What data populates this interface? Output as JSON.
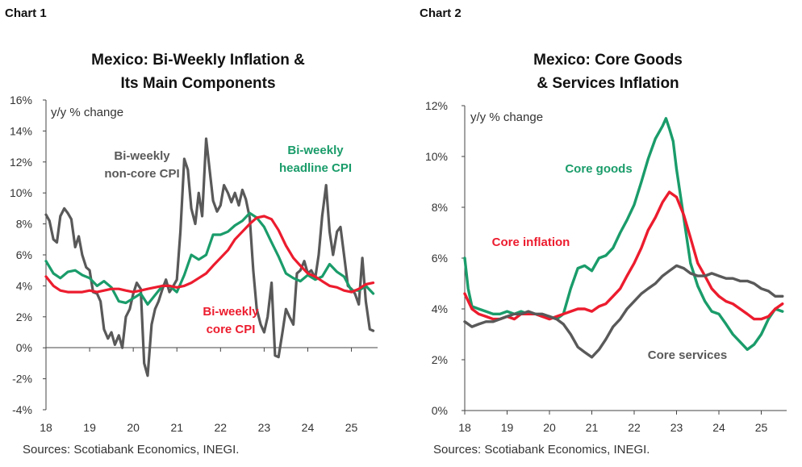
{
  "chart_data": [
    {
      "type": "line",
      "label": "Chart 1",
      "title_lines": [
        "Mexico: Bi-Weekly Inflation &",
        "Its Main Components"
      ],
      "unit_label": "y/y % change",
      "source": "Sources: Scotiabank Economics, INEGI.",
      "xlim": [
        2018,
        2025.6
      ],
      "ylim": [
        -4,
        16
      ],
      "x_ticks": [
        "18",
        "19",
        "20",
        "21",
        "22",
        "23",
        "24",
        "25"
      ],
      "y_ticks": [
        "-4%",
        "-2%",
        "0%",
        "2%",
        "4%",
        "6%",
        "8%",
        "10%",
        "12%",
        "14%",
        "16%"
      ],
      "grid": false,
      "series": [
        {
          "name": "Bi-weekly non-core CPI",
          "label_lines": [
            "Bi-weekly",
            "non-core CPI"
          ],
          "color": "#595959",
          "x": [
            2018.0,
            2018.08,
            2018.17,
            2018.25,
            2018.33,
            2018.42,
            2018.5,
            2018.58,
            2018.67,
            2018.75,
            2018.83,
            2018.92,
            2019.0,
            2019.08,
            2019.17,
            2019.25,
            2019.33,
            2019.42,
            2019.5,
            2019.58,
            2019.67,
            2019.75,
            2019.83,
            2019.92,
            2020.0,
            2020.08,
            2020.17,
            2020.25,
            2020.33,
            2020.42,
            2020.5,
            2020.58,
            2020.67,
            2020.75,
            2020.83,
            2020.92,
            2021.0,
            2021.08,
            2021.17,
            2021.25,
            2021.33,
            2021.42,
            2021.5,
            2021.58,
            2021.67,
            2021.75,
            2021.83,
            2021.92,
            2022.0,
            2022.08,
            2022.17,
            2022.25,
            2022.33,
            2022.42,
            2022.5,
            2022.58,
            2022.67,
            2022.75,
            2022.83,
            2022.92,
            2023.0,
            2023.08,
            2023.17,
            2023.25,
            2023.33,
            2023.42,
            2023.5,
            2023.58,
            2023.67,
            2023.75,
            2023.83,
            2023.92,
            2024.0,
            2024.08,
            2024.17,
            2024.25,
            2024.33,
            2024.42,
            2024.5,
            2024.58,
            2024.67,
            2024.75,
            2024.83,
            2024.92,
            2025.0,
            2025.08,
            2025.17,
            2025.25,
            2025.33,
            2025.42,
            2025.5
          ],
          "values": [
            8.6,
            8.2,
            7.0,
            6.8,
            8.5,
            9.0,
            8.7,
            8.3,
            6.5,
            7.2,
            6.0,
            5.2,
            5.0,
            3.6,
            3.5,
            3.0,
            1.2,
            0.6,
            1.0,
            0.2,
            0.8,
            0.0,
            2.0,
            2.5,
            3.5,
            4.2,
            3.8,
            -1.0,
            -1.8,
            1.5,
            2.5,
            3.0,
            3.8,
            4.4,
            3.6,
            4.0,
            4.4,
            7.5,
            12.2,
            11.5,
            9.0,
            8.0,
            10.0,
            8.5,
            13.5,
            11.5,
            9.5,
            8.8,
            9.2,
            10.5,
            10.0,
            9.4,
            10.0,
            9.2,
            10.2,
            9.6,
            8.4,
            5.0,
            2.5,
            1.5,
            1.0,
            2.0,
            4.2,
            -0.5,
            -0.6,
            1.0,
            2.5,
            2.0,
            1.5,
            4.8,
            5.0,
            5.6,
            4.8,
            5.0,
            4.5,
            6.0,
            8.5,
            10.5,
            7.5,
            6.0,
            7.5,
            7.8,
            6.0,
            4.0,
            3.8,
            3.5,
            2.8,
            5.8,
            3.0,
            1.2,
            1.1
          ]
        },
        {
          "name": "Bi-weekly headline CPI",
          "label_lines": [
            "Bi-weekly",
            "headline CPI"
          ],
          "color": "#1a9c6a",
          "x": [
            2018.0,
            2018.17,
            2018.33,
            2018.5,
            2018.67,
            2018.83,
            2019.0,
            2019.17,
            2019.33,
            2019.5,
            2019.67,
            2019.83,
            2020.0,
            2020.17,
            2020.33,
            2020.5,
            2020.67,
            2020.83,
            2021.0,
            2021.17,
            2021.33,
            2021.5,
            2021.67,
            2021.83,
            2022.0,
            2022.17,
            2022.33,
            2022.5,
            2022.67,
            2022.83,
            2023.0,
            2023.17,
            2023.33,
            2023.5,
            2023.67,
            2023.83,
            2024.0,
            2024.17,
            2024.33,
            2024.5,
            2024.67,
            2024.83,
            2025.0,
            2025.17,
            2025.33,
            2025.5
          ],
          "values": [
            5.6,
            4.8,
            4.5,
            4.9,
            5.0,
            4.7,
            4.5,
            4.0,
            4.3,
            3.9,
            3.0,
            2.9,
            3.2,
            3.5,
            2.8,
            3.4,
            4.0,
            4.0,
            3.6,
            4.7,
            6.0,
            5.7,
            6.0,
            7.3,
            7.3,
            7.5,
            7.9,
            8.2,
            8.7,
            8.4,
            7.8,
            6.8,
            5.9,
            4.8,
            4.5,
            4.3,
            4.7,
            4.4,
            4.6,
            5.4,
            4.9,
            4.6,
            3.7,
            3.7,
            4.0,
            3.5
          ]
        },
        {
          "name": "Bi-weekly core CPI",
          "label_lines": [
            "Bi-weekly",
            "core CPI"
          ],
          "color": "#ec1c2e",
          "x": [
            2018.0,
            2018.17,
            2018.33,
            2018.5,
            2018.67,
            2018.83,
            2019.0,
            2019.17,
            2019.33,
            2019.5,
            2019.67,
            2019.83,
            2020.0,
            2020.17,
            2020.33,
            2020.5,
            2020.67,
            2020.83,
            2021.0,
            2021.17,
            2021.33,
            2021.5,
            2021.67,
            2021.83,
            2022.0,
            2022.17,
            2022.33,
            2022.5,
            2022.67,
            2022.83,
            2023.0,
            2023.17,
            2023.33,
            2023.5,
            2023.67,
            2023.83,
            2024.0,
            2024.17,
            2024.33,
            2024.5,
            2024.67,
            2024.83,
            2025.0,
            2025.17,
            2025.33,
            2025.5
          ],
          "values": [
            4.6,
            4.0,
            3.7,
            3.6,
            3.6,
            3.6,
            3.7,
            3.6,
            3.7,
            3.8,
            3.8,
            3.7,
            3.6,
            3.7,
            3.8,
            3.9,
            4.0,
            4.0,
            3.9,
            4.0,
            4.2,
            4.5,
            4.8,
            5.3,
            5.8,
            6.3,
            7.0,
            7.5,
            8.0,
            8.4,
            8.5,
            8.3,
            7.6,
            6.6,
            5.8,
            5.3,
            4.8,
            4.6,
            4.3,
            4.0,
            3.9,
            3.7,
            3.6,
            3.8,
            4.1,
            4.2
          ]
        }
      ]
    },
    {
      "type": "line",
      "label": "Chart 2",
      "title_lines": [
        "Mexico: Core Goods",
        "& Services Inflation"
      ],
      "unit_label": "y/y % change",
      "source": "Sources: Scotiabank Economics, INEGI.",
      "xlim": [
        2018,
        2025.6
      ],
      "ylim": [
        0,
        12
      ],
      "x_ticks": [
        "18",
        "19",
        "20",
        "21",
        "22",
        "23",
        "24",
        "25"
      ],
      "y_ticks": [
        "0%",
        "2%",
        "4%",
        "6%",
        "8%",
        "10%",
        "12%"
      ],
      "grid": false,
      "series": [
        {
          "name": "Core goods",
          "label_lines": [
            "Core goods"
          ],
          "color": "#1a9c6a",
          "x": [
            2018.0,
            2018.08,
            2018.17,
            2018.33,
            2018.5,
            2018.67,
            2018.83,
            2019.0,
            2019.17,
            2019.33,
            2019.5,
            2019.67,
            2019.83,
            2020.0,
            2020.17,
            2020.33,
            2020.5,
            2020.67,
            2020.83,
            2021.0,
            2021.17,
            2021.33,
            2021.5,
            2021.67,
            2021.83,
            2022.0,
            2022.17,
            2022.33,
            2022.5,
            2022.67,
            2022.75,
            2022.83,
            2022.92,
            2023.0,
            2023.17,
            2023.33,
            2023.5,
            2023.67,
            2023.83,
            2024.0,
            2024.17,
            2024.33,
            2024.5,
            2024.67,
            2024.83,
            2025.0,
            2025.17,
            2025.33,
            2025.5
          ],
          "values": [
            6.0,
            4.8,
            4.1,
            4.0,
            3.9,
            3.8,
            3.8,
            3.9,
            3.8,
            3.9,
            3.8,
            3.8,
            3.7,
            3.7,
            3.6,
            3.8,
            4.8,
            5.6,
            5.7,
            5.5,
            6.0,
            6.1,
            6.4,
            7.0,
            7.5,
            8.1,
            9.0,
            9.9,
            10.7,
            11.2,
            11.5,
            11.1,
            10.6,
            9.5,
            7.6,
            5.8,
            4.9,
            4.3,
            3.9,
            3.8,
            3.4,
            3.0,
            2.7,
            2.4,
            2.6,
            3.0,
            3.6,
            4.0,
            3.9
          ]
        },
        {
          "name": "Core inflation",
          "label_lines": [
            "Core inflation"
          ],
          "color": "#ec1c2e",
          "x": [
            2018.0,
            2018.17,
            2018.33,
            2018.5,
            2018.67,
            2018.83,
            2019.0,
            2019.17,
            2019.33,
            2019.5,
            2019.67,
            2019.83,
            2020.0,
            2020.17,
            2020.33,
            2020.5,
            2020.67,
            2020.83,
            2021.0,
            2021.17,
            2021.33,
            2021.5,
            2021.67,
            2021.83,
            2022.0,
            2022.17,
            2022.33,
            2022.5,
            2022.67,
            2022.83,
            2023.0,
            2023.17,
            2023.33,
            2023.5,
            2023.67,
            2023.83,
            2024.0,
            2024.17,
            2024.33,
            2024.5,
            2024.67,
            2024.83,
            2025.0,
            2025.17,
            2025.33,
            2025.5
          ],
          "values": [
            4.6,
            4.0,
            3.8,
            3.7,
            3.6,
            3.6,
            3.7,
            3.6,
            3.8,
            3.8,
            3.8,
            3.7,
            3.6,
            3.7,
            3.8,
            3.9,
            4.0,
            4.0,
            3.9,
            4.1,
            4.2,
            4.5,
            4.8,
            5.3,
            5.8,
            6.4,
            7.1,
            7.6,
            8.2,
            8.6,
            8.4,
            7.7,
            6.8,
            5.8,
            5.3,
            4.8,
            4.5,
            4.3,
            4.2,
            4.0,
            3.8,
            3.6,
            3.6,
            3.7,
            4.0,
            4.2
          ]
        },
        {
          "name": "Core services",
          "label_lines": [
            "Core services"
          ],
          "color": "#595959",
          "x": [
            2018.0,
            2018.17,
            2018.33,
            2018.5,
            2018.67,
            2018.83,
            2019.0,
            2019.17,
            2019.33,
            2019.5,
            2019.67,
            2019.83,
            2020.0,
            2020.17,
            2020.33,
            2020.5,
            2020.67,
            2020.83,
            2021.0,
            2021.17,
            2021.33,
            2021.5,
            2021.67,
            2021.83,
            2022.0,
            2022.17,
            2022.33,
            2022.5,
            2022.67,
            2022.83,
            2023.0,
            2023.17,
            2023.33,
            2023.5,
            2023.67,
            2023.83,
            2024.0,
            2024.17,
            2024.33,
            2024.5,
            2024.67,
            2024.83,
            2025.0,
            2025.17,
            2025.33,
            2025.5
          ],
          "values": [
            3.5,
            3.3,
            3.4,
            3.5,
            3.5,
            3.6,
            3.7,
            3.8,
            3.8,
            3.9,
            3.8,
            3.8,
            3.7,
            3.6,
            3.4,
            3.0,
            2.5,
            2.3,
            2.1,
            2.4,
            2.8,
            3.3,
            3.6,
            4.0,
            4.3,
            4.6,
            4.8,
            5.0,
            5.3,
            5.5,
            5.7,
            5.6,
            5.4,
            5.3,
            5.3,
            5.4,
            5.3,
            5.2,
            5.2,
            5.1,
            5.1,
            5.0,
            4.8,
            4.7,
            4.5,
            4.5
          ]
        }
      ]
    }
  ]
}
